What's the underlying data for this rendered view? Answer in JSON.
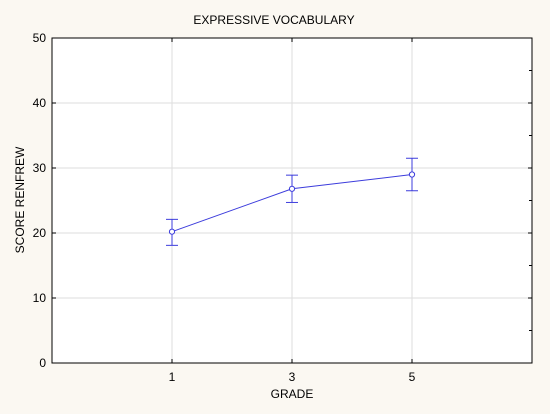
{
  "chart_data": {
    "type": "line",
    "title": "EXPRESSIVE VOCABULARY",
    "xlabel": "GRADE",
    "ylabel": "SCORE RENFREW",
    "categories": [
      "1",
      "3",
      "5"
    ],
    "series": [
      {
        "values": [
          20.2,
          26.8,
          29.0
        ],
        "error_low": [
          18.1,
          24.7,
          26.5
        ],
        "error_high": [
          22.1,
          28.9,
          31.5
        ],
        "color": "#3c3cdc"
      }
    ],
    "ylim": [
      0,
      50
    ],
    "yticks": [
      0,
      10,
      20,
      30,
      40,
      50
    ],
    "grid": true,
    "legend": "none"
  }
}
